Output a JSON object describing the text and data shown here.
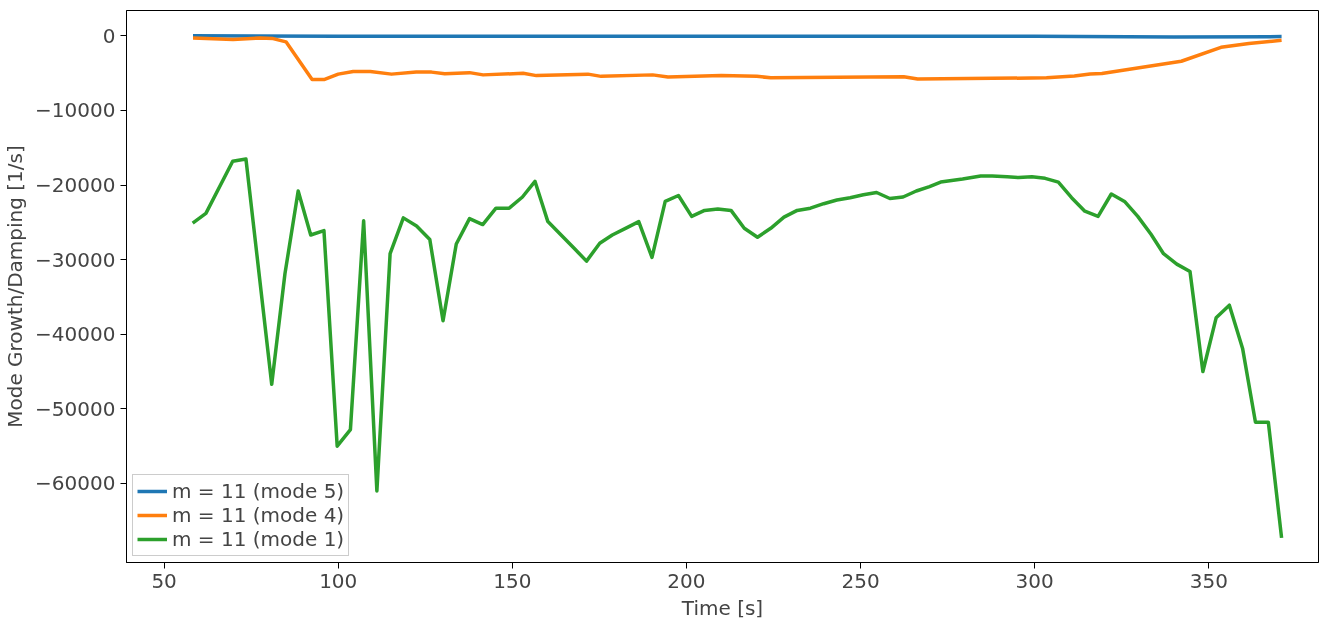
{
  "chart_data": {
    "type": "line",
    "xlabel": "Time [s]",
    "ylabel": "Mode Growth/Damping [1/s]",
    "xlim": [
      39.2,
      381.5
    ],
    "ylim": [
      -70600,
      3400
    ],
    "xticks": [
      50,
      100,
      150,
      200,
      250,
      300,
      350
    ],
    "yticks": [
      {
        "value": 0,
        "label": "0"
      },
      {
        "value": -10000,
        "label": "−10000"
      },
      {
        "value": -20000,
        "label": "−20000"
      },
      {
        "value": -30000,
        "label": "−30000"
      },
      {
        "value": -40000,
        "label": "−40000"
      },
      {
        "value": -50000,
        "label": "−50000"
      },
      {
        "value": -60000,
        "label": "−60000"
      }
    ],
    "grid": false,
    "legend": "bottom left",
    "line_style": "solid",
    "marker": "none",
    "series": [
      {
        "name": "m = 11 (mode 5)",
        "color": "#1f77b4",
        "x": [
          58.3,
          100,
          200,
          300,
          340,
          370.9
        ],
        "values": [
          0,
          -50,
          -50,
          -50,
          -150,
          -100
        ]
      },
      {
        "name": "m = 11 (mode 4)",
        "color": "#ff7f0e",
        "x": [
          58.3,
          69.8,
          77.5,
          81.3,
          85.0,
          92.5,
          96.1,
          100.0,
          104.3,
          109.2,
          115.3,
          122.4,
          126.8,
          130.6,
          137.7,
          141.6,
          153.1,
          156.9,
          171.7,
          175.5,
          190.3,
          194.7,
          210.0,
          220.2,
          224.2,
          262.4,
          266.4,
          303.4,
          311.4,
          315.9,
          319.3,
          342.1,
          353.5,
          361.5,
          370.9
        ],
        "values": [
          -300,
          -480,
          -280,
          -370,
          -800,
          -5840,
          -5840,
          -5130,
          -4770,
          -4770,
          -5130,
          -4860,
          -4860,
          -5070,
          -4930,
          -5230,
          -5020,
          -5330,
          -5130,
          -5430,
          -5230,
          -5520,
          -5330,
          -5420,
          -5630,
          -5470,
          -5790,
          -5630,
          -5370,
          -5100,
          -5050,
          -3400,
          -1540,
          -1010,
          -600
        ]
      },
      {
        "name": "m = 11 (mode 1)",
        "color": "#2ca02c",
        "x": [
          58.2,
          62.0,
          69.7,
          73.5,
          80.9,
          84.7,
          88.5,
          92.1,
          95.9,
          99.7,
          103.5,
          107.3,
          111.1,
          114.9,
          118.7,
          122.5,
          126.3,
          130.1,
          133.9,
          137.7,
          141.5,
          145.3,
          149.1,
          152.9,
          156.5,
          160.2,
          164.0,
          167.6,
          171.3,
          175.1,
          178.7,
          182.5,
          186.3,
          190.1,
          193.9,
          197.7,
          201.5,
          205.2,
          209.0,
          212.8,
          216.6,
          220.4,
          224.2,
          228.0,
          231.8,
          235.6,
          239.4,
          243.2,
          247.0,
          250.8,
          254.6,
          258.4,
          262.2,
          266.0,
          269.8,
          273.0,
          279.3,
          284.5,
          287.8,
          292.1,
          295.4,
          299.2,
          303.0,
          306.8,
          310.6,
          314.4,
          318.2,
          322.0,
          325.8,
          329.6,
          333.4,
          337.0,
          340.8,
          344.6,
          348.3,
          352.1,
          355.9,
          359.7,
          363.4,
          367.1,
          370.9
        ],
        "values": [
          -25100,
          -23800,
          -16800,
          -16500,
          -46700,
          -31900,
          -20800,
          -26700,
          -26100,
          -55000,
          -52800,
          -24800,
          -61000,
          -29200,
          -24400,
          -25500,
          -27300,
          -38200,
          -27900,
          -24500,
          -25300,
          -23100,
          -23100,
          -21600,
          -19500,
          -24900,
          -26700,
          -28400,
          -30200,
          -27800,
          -26700,
          -25800,
          -24900,
          -29700,
          -22200,
          -21400,
          -24200,
          -23400,
          -23200,
          -23400,
          -25800,
          -27000,
          -25800,
          -24300,
          -23400,
          -23100,
          -22500,
          -22000,
          -21700,
          -21300,
          -21000,
          -21800,
          -21600,
          -20800,
          -20200,
          -19600,
          -19200,
          -18800,
          -18800,
          -18900,
          -19000,
          -18900,
          -19100,
          -19600,
          -21700,
          -23500,
          -24200,
          -21200,
          -22200,
          -24200,
          -26600,
          -29200,
          -30600,
          -31600,
          -45000,
          -37800,
          -36100,
          -41900,
          -51800,
          -51800,
          -67300
        ]
      }
    ]
  }
}
